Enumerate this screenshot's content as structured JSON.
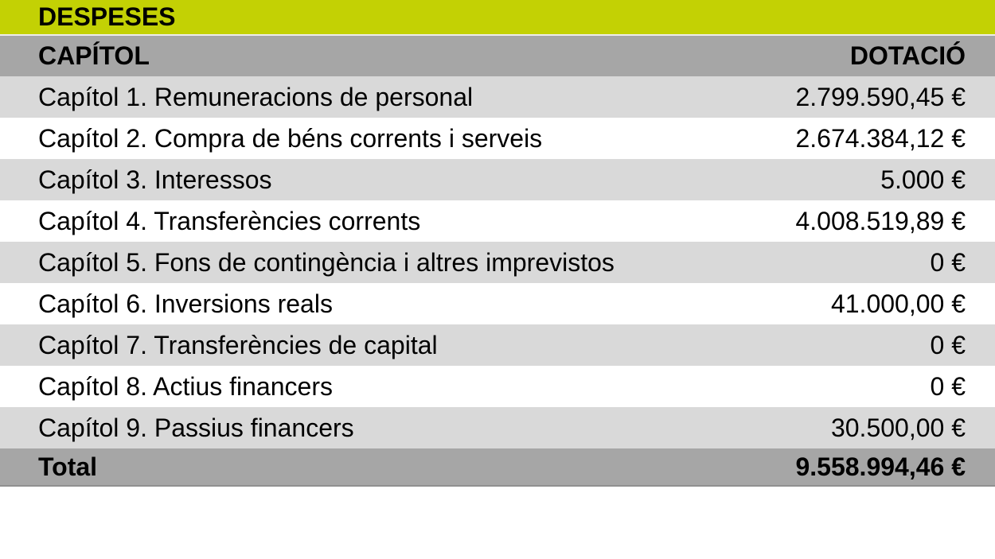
{
  "colors": {
    "title_bg": "#c3d104",
    "header_bg": "#a6a6a6",
    "row_alt_bg": "#d9d9d9",
    "row_bg": "#ffffff",
    "total_bg": "#a6a6a6",
    "text": "#000000"
  },
  "table": {
    "title": "DESPESES",
    "columns": {
      "capitol": "CAPÍTOL",
      "dotacio": "DOTACIÓ"
    },
    "rows": [
      {
        "label": "Capítol 1. Remuneracions de personal",
        "value": "2.799.590,45 €"
      },
      {
        "label": "Capítol 2. Compra de béns corrents i serveis",
        "value": "2.674.384,12 €"
      },
      {
        "label": "Capítol 3. Interessos",
        "value": "5.000 €"
      },
      {
        "label": "Capítol 4. Transferències corrents",
        "value": "4.008.519,89 €"
      },
      {
        "label": "Capítol 5. Fons de contingència i altres imprevistos",
        "value": "0 €"
      },
      {
        "label": "Capítol 6. Inversions reals",
        "value": "41.000,00 €"
      },
      {
        "label": "Capítol 7. Transferències de capital",
        "value": "0 €"
      },
      {
        "label": "Capítol 8. Actius financers",
        "value": "0 €"
      },
      {
        "label": "Capítol 9. Passius financers",
        "value": "30.500,00 €"
      }
    ],
    "total": {
      "label": "Total",
      "value": "9.558.994,46 €"
    }
  },
  "chart_data": {
    "type": "table",
    "title": "DESPESES",
    "columns": [
      "CAPÍTOL",
      "DOTACIÓ"
    ],
    "rows": [
      [
        "Capítol 1. Remuneracions de personal",
        "2.799.590,45 €"
      ],
      [
        "Capítol 2. Compra de béns corrents i serveis",
        "2.674.384,12 €"
      ],
      [
        "Capítol 3. Interessos",
        "5.000 €"
      ],
      [
        "Capítol 4. Transferències corrents",
        "4.008.519,89 €"
      ],
      [
        "Capítol 5. Fons de contingència i altres imprevistos",
        "0 €"
      ],
      [
        "Capítol 6. Inversions reals",
        "41.000,00 €"
      ],
      [
        "Capítol 7. Transferències de capital",
        "0 €"
      ],
      [
        "Capítol 8. Actius financers",
        "0 €"
      ],
      [
        "Capítol 9. Passius financers",
        "30.500,00 €"
      ]
    ],
    "values_numeric": [
      2799590.45,
      2674384.12,
      5000,
      4008519.89,
      0,
      41000.0,
      0,
      0,
      30500.0
    ],
    "total_label": "Total",
    "total_numeric": 9558994.46,
    "currency": "EUR",
    "layout": {
      "zebra_striping": true,
      "value_alignment": "right",
      "header_style": "bold-gray-band",
      "title_style": "bold-green-band"
    }
  }
}
